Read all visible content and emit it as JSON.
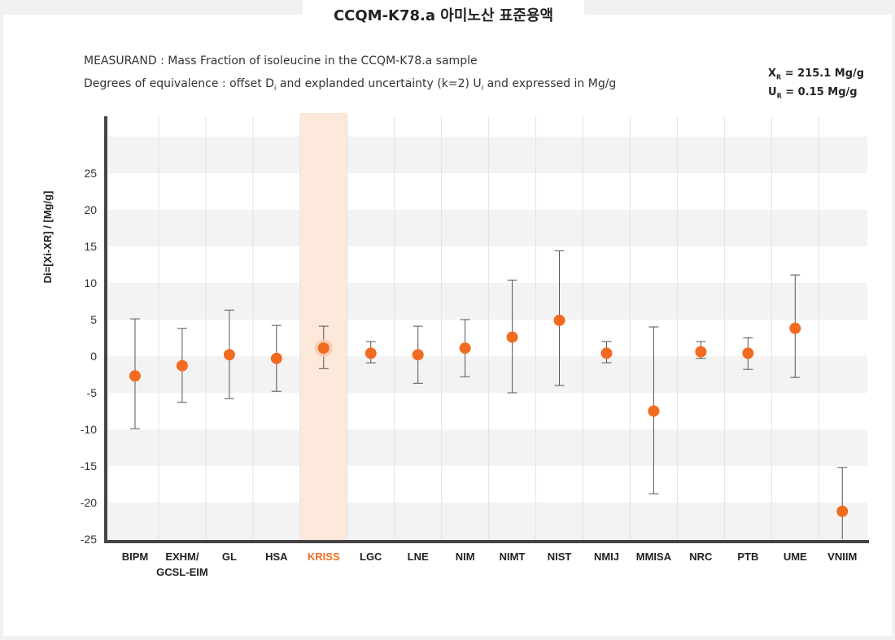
{
  "title": "CCQM-K78.a 아미노산 표준용액",
  "measurand": "MEASURAND :  Mass Fraction of isoleucine in the CCQM-K78.a  sample",
  "degrees_prefix": "Degrees of equivalence : offset D",
  "degrees_mid": " and explanded uncertainty (k=2) U",
  "degrees_suffix": " and expressed in Mg/g",
  "sub_i": "i",
  "xr_label": "X",
  "xr_sub": "R",
  "xr_value": " = 215.1 Mg/g",
  "ur_label": "U",
  "ur_sub": "R",
  "ur_value": " = 0.15 Mg/g",
  "colors": {
    "point": "#f26b21",
    "highlight": "#fde8dc",
    "highlight_text": "#f26b21",
    "band": "#f3f3f3",
    "axis": "#444444"
  },
  "chart_data": {
    "type": "scatter",
    "ylabel": "Di=[Xi-XR] / [Mg/g]",
    "ylim": [
      -25,
      30
    ],
    "yticks": [
      25,
      20,
      15,
      10,
      5,
      0,
      -5,
      -10,
      -15,
      -20,
      -25
    ],
    "highlight": "KRISS",
    "grid": true,
    "points": [
      {
        "label": "BIPM",
        "label2": "",
        "d": -2.7,
        "upper": 5.1,
        "lower": -9.9
      },
      {
        "label": "EXHM/",
        "label2": "GCSL-EIM",
        "d": -1.3,
        "upper": 3.8,
        "lower": -6.3
      },
      {
        "label": "GL",
        "label2": "",
        "d": 0.2,
        "upper": 6.3,
        "lower": -5.8
      },
      {
        "label": "HSA",
        "label2": "",
        "d": -0.3,
        "upper": 4.2,
        "lower": -4.8
      },
      {
        "label": "KRISS",
        "label2": "",
        "d": 1.1,
        "upper": 4.1,
        "lower": -1.7
      },
      {
        "label": "LGC",
        "label2": "",
        "d": 0.4,
        "upper": 2.0,
        "lower": -0.9
      },
      {
        "label": "LNE",
        "label2": "",
        "d": 0.2,
        "upper": 4.1,
        "lower": -3.7
      },
      {
        "label": "NIM",
        "label2": "",
        "d": 1.1,
        "upper": 5.0,
        "lower": -2.8
      },
      {
        "label": "NIMT",
        "label2": "",
        "d": 2.6,
        "upper": 10.4,
        "lower": -5.0
      },
      {
        "label": "NIST",
        "label2": "",
        "d": 4.9,
        "upper": 14.4,
        "lower": -4.0
      },
      {
        "label": "NMIJ",
        "label2": "",
        "d": 0.4,
        "upper": 2.0,
        "lower": -0.9
      },
      {
        "label": "MMISA",
        "label2": "",
        "d": -7.5,
        "upper": 4.0,
        "lower": -18.8
      },
      {
        "label": "NRC",
        "label2": "",
        "d": 0.6,
        "upper": 2.0,
        "lower": -0.3
      },
      {
        "label": "PTB",
        "label2": "",
        "d": 0.4,
        "upper": 2.5,
        "lower": -1.8
      },
      {
        "label": "UME",
        "label2": "",
        "d": 3.8,
        "upper": 11.1,
        "lower": -2.9
      },
      {
        "label": "VNIIM",
        "label2": "",
        "d": -21.2,
        "upper": -15.2,
        "lower": -25
      }
    ]
  }
}
